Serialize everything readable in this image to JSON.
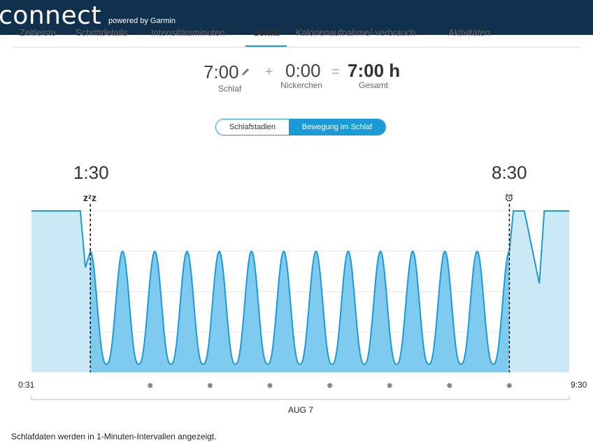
{
  "header": {
    "logo_text": "connect",
    "powered_by": "powered by Garmin"
  },
  "tabs": [
    {
      "label": "Zeitleiste"
    },
    {
      "label": "Schrittdetails"
    },
    {
      "label": "Intensitätsminuten"
    },
    {
      "label": "Schlaf"
    },
    {
      "label": "Kalorienaufnahme/-verbrauch"
    },
    {
      "label": "Aktivitäten"
    }
  ],
  "summary": {
    "sleep": {
      "value": "7:00",
      "label": "Schlaf"
    },
    "plus": "+",
    "nap": {
      "value": "0:00",
      "label": "Nickerchen"
    },
    "equals": "=",
    "total": {
      "value": "7:00 h",
      "label": "Gesamt"
    }
  },
  "view_toggle": {
    "options": [
      "Schlafstadien",
      "Bewegung im Schlaf"
    ],
    "selected": "Bewegung im Schlaf"
  },
  "sleep_window": {
    "start_time": "1:30",
    "end_time": "8:30",
    "start_icon": "zzz-sleep-icon",
    "end_icon": "alarm-clock-icon",
    "start_symbol": "zᶻz"
  },
  "x_axis": {
    "start_label": "0:31",
    "end_label": "9:30",
    "date_label": "AUG 7"
  },
  "footnote": "Schlafdaten werden in 1-Minuten-Intervallen angezeigt.",
  "colors": {
    "topbar": "#11304d",
    "accent": "#1a9ad6",
    "fill_light": "#cce9f8",
    "fill_dark": "#7fcbef",
    "line": "#1a9ad6"
  },
  "chart_data": {
    "type": "area",
    "title": "",
    "xlabel": "",
    "ylabel": "",
    "x_range": [
      "0:31",
      "9:30"
    ],
    "sleep_start": "1:30",
    "sleep_end": "8:30",
    "ylim": [
      0,
      1
    ],
    "movement_peaks": 13,
    "series": [
      {
        "values_before_sleep": [
          {
            "t": "0:31",
            "v": 1.0
          },
          {
            "t": "1:20",
            "v": 1.0
          },
          {
            "t": "1:25",
            "v": 0.65
          },
          {
            "t": "1:30",
            "v": 0.75
          }
        ],
        "values_during_sleep_peak": 0.75,
        "values_during_sleep_trough": 0.05,
        "values_after_sleep": [
          {
            "t": "8:30",
            "v": 0.75
          },
          {
            "t": "8:34",
            "v": 1.0
          },
          {
            "t": "8:45",
            "v": 1.0
          },
          {
            "t": "9:00",
            "v": 0.55
          },
          {
            "t": "9:05",
            "v": 1.0
          },
          {
            "t": "9:30",
            "v": 1.0
          }
        ]
      }
    ]
  }
}
